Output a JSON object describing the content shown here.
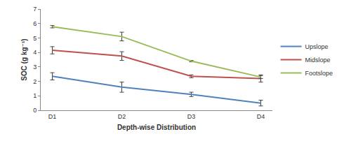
{
  "chart_data": {
    "type": "line",
    "x_label": "Depth-wise Distribution",
    "y_label": "SOC (g kg⁻¹)",
    "categories": [
      "D1",
      "D2",
      "D3",
      "D4"
    ],
    "series": [
      {
        "name": "Upslope",
        "color": "#4f81bd",
        "values": [
          2.35,
          1.6,
          1.1,
          0.5
        ],
        "errors": [
          0.25,
          0.35,
          0.15,
          0.2
        ]
      },
      {
        "name": "Midslope",
        "color": "#c0504d",
        "values": [
          4.15,
          3.75,
          2.35,
          2.2
        ],
        "errors": [
          0.25,
          0.3,
          0.1,
          0.25
        ]
      },
      {
        "name": "Footslope",
        "color": "#9bbb59",
        "values": [
          5.78,
          5.1,
          3.4,
          2.3
        ],
        "errors": [
          0.08,
          0.3,
          0.05,
          0.1
        ]
      }
    ],
    "ylim": [
      0,
      7
    ],
    "yticks": [
      0,
      1,
      2,
      3,
      4,
      5,
      6,
      7
    ],
    "grid": false,
    "legend": "right"
  }
}
